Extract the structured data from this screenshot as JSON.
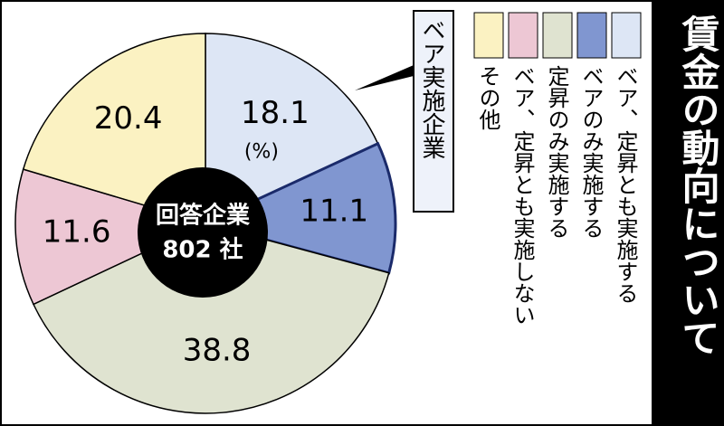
{
  "chart_data": {
    "type": "pie",
    "title": "賃金の動向について",
    "categories": [
      "ベア、定昇とも実施する",
      "ベアのみ実施する",
      "定昇のみ実施する",
      "ベア、定昇とも実施しない",
      "その他"
    ],
    "values": [
      18.1,
      11.1,
      38.8,
      11.6,
      20.4
    ],
    "colors": [
      "#dde6f5",
      "#8096d0",
      "#dfe3d0",
      "#edc7d4",
      "#fbf2c2"
    ],
    "unit_label": "(%)",
    "center_label": [
      "回答企業",
      "802 社"
    ],
    "annotation": "ベア実施企業"
  }
}
